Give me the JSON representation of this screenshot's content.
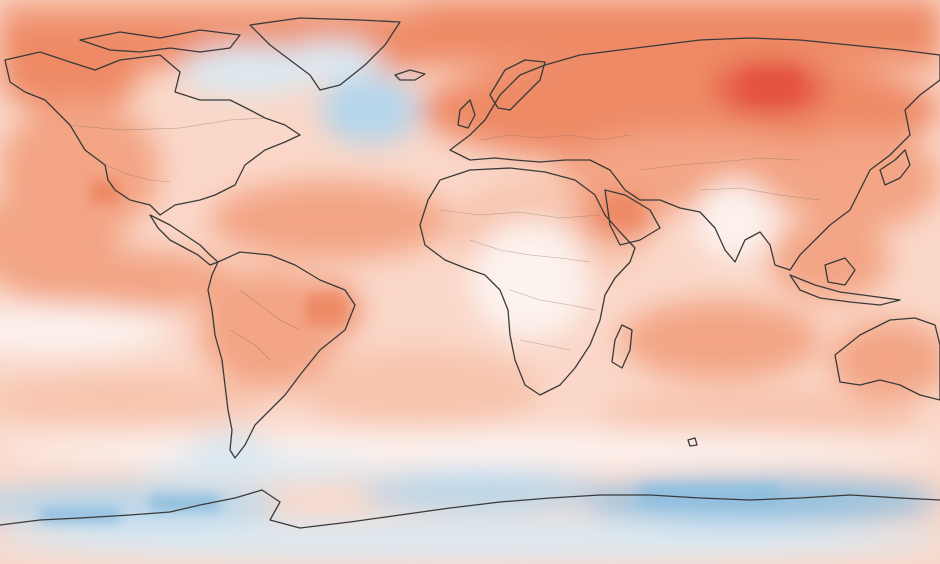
{
  "map": {
    "type": "temperature-anomaly-world-map",
    "projection": "equirectangular",
    "legend": "",
    "title": "",
    "palette": {
      "ocean_base": "#fbe6de",
      "very_warm": "#e4533f",
      "strong_warm": "#ee8a66",
      "warm": "#f3a585",
      "mild_warm": "#f7c4ad",
      "slight_warm": "#fad7c8",
      "near_zero": "#fcf2ee",
      "slight_cool": "#dbe9f2",
      "cool": "#b7d6ea",
      "strong_cool": "#90bfdf",
      "coastline": "#3a3a3a",
      "borders": "#8a6a5e"
    }
  }
}
